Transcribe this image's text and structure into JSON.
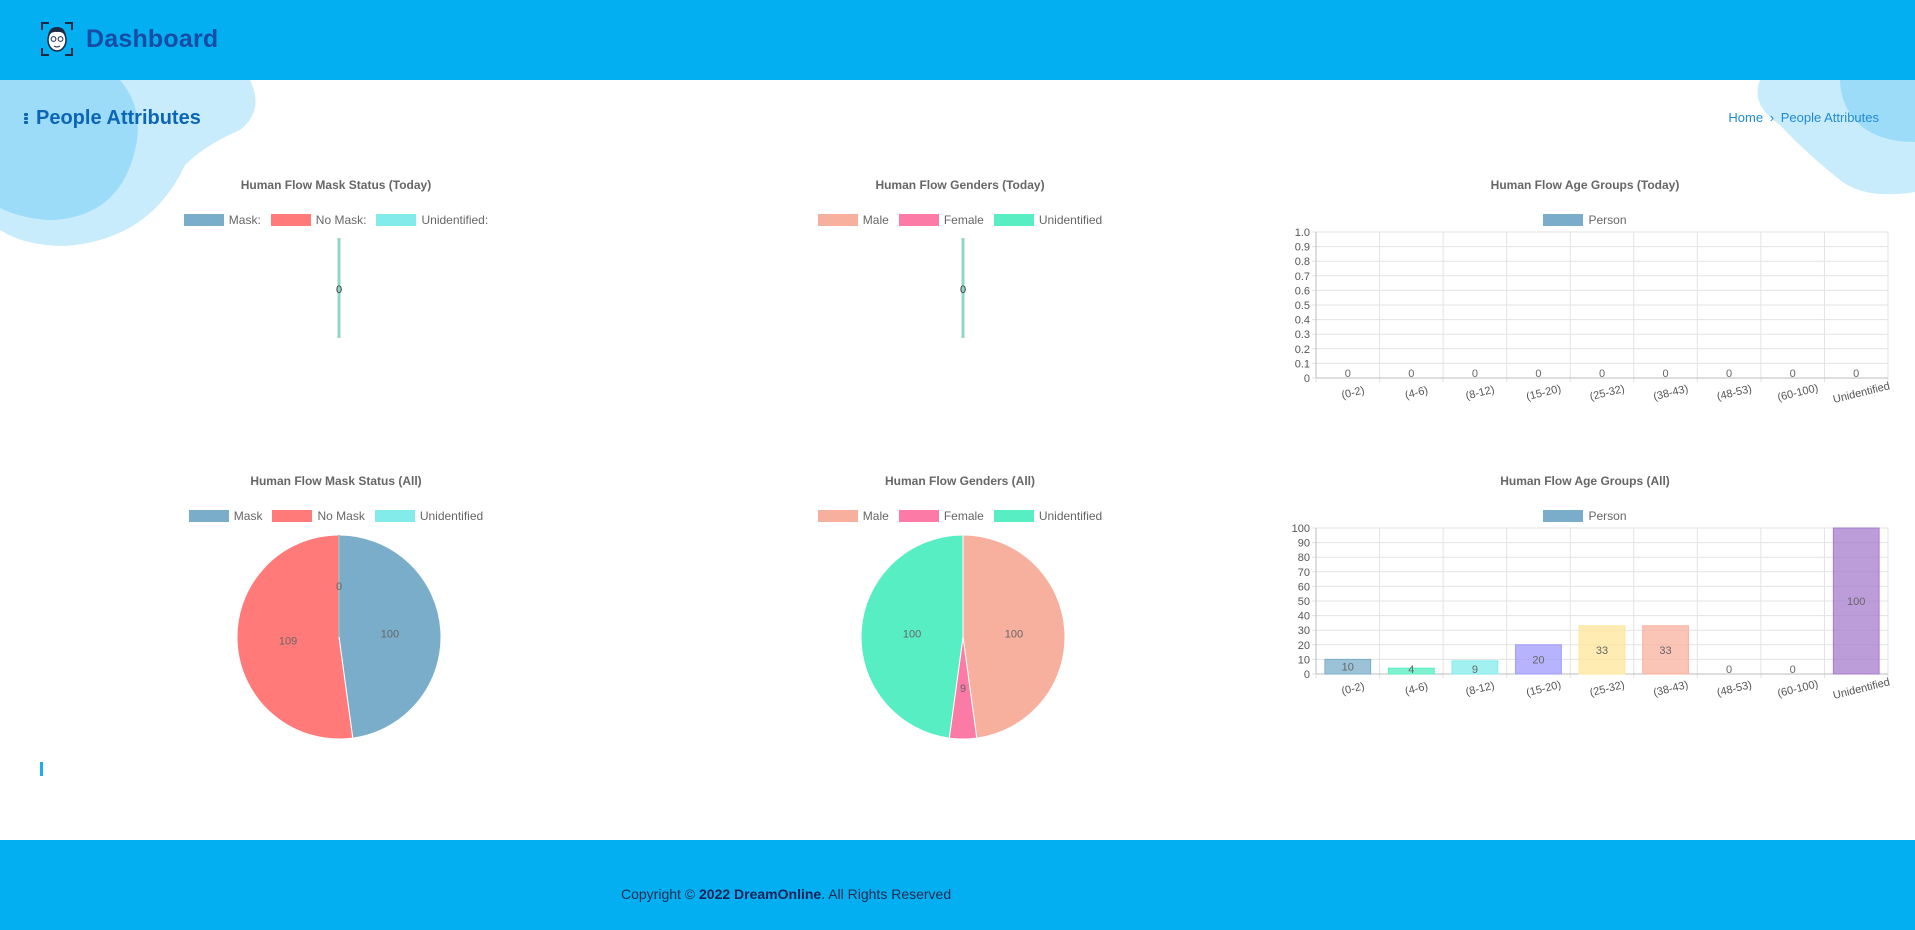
{
  "header": {
    "title": "Dashboard",
    "logo_icon": "face-scan-icon"
  },
  "page": {
    "title": "People Attributes",
    "breadcrumb": {
      "home": "Home",
      "separator": "›",
      "current": "People Attributes"
    }
  },
  "footer": {
    "copyright_prefix": "Copyright ©",
    "year_company": "2022 DreamOnline",
    "suffix": ". All Rights Reserved"
  },
  "colors": {
    "header_bg": "#03aff0",
    "title_blue": "#164ba6",
    "mask": "#79adc9",
    "no_mask": "#ff7a79",
    "unidentified_mask": "#83ebea",
    "male": "#f8b09e",
    "female": "#fc7ba6",
    "unidentified_gender": "#56eec2",
    "person": "#79adc9"
  },
  "chart_data": [
    {
      "id": "mask_today",
      "type": "pie",
      "title": "Human Flow Mask Status (Today)",
      "labels": [
        "Mask:",
        "No Mask:",
        "Unidentified:"
      ],
      "colors": [
        "#79adc9",
        "#ff7a79",
        "#83ebea"
      ],
      "values": [
        0,
        0,
        0
      ],
      "data_labels": [
        "0"
      ]
    },
    {
      "id": "genders_today",
      "type": "pie",
      "title": "Human Flow Genders (Today)",
      "labels": [
        "Male",
        "Female",
        "Unidentified"
      ],
      "colors": [
        "#f8b09e",
        "#fc7ba6",
        "#56eec2"
      ],
      "values": [
        0,
        0,
        0
      ],
      "data_labels": [
        "0"
      ]
    },
    {
      "id": "age_today",
      "type": "bar",
      "title": "Human Flow Age Groups (Today)",
      "series": [
        {
          "name": "Person",
          "values": [
            0,
            0,
            0,
            0,
            0,
            0,
            0,
            0,
            0
          ]
        }
      ],
      "categories": [
        "(0-2)",
        "(4-6)",
        "(8-12)",
        "(15-20)",
        "(25-32)",
        "(38-43)",
        "(48-53)",
        "(60-100)",
        "Unidentified"
      ],
      "bar_colors": [
        "#79adc9",
        "#56eec2",
        "#83ebea",
        "#9f9afc",
        "#fde598",
        "#f8b09e",
        "#79adc9",
        "#56eec2",
        "#a77ccc"
      ],
      "legend_color": "#79adc9",
      "ylim": [
        0,
        1.0
      ],
      "yticks": [
        "0",
        "0.1",
        "0.2",
        "0.3",
        "0.4",
        "0.5",
        "0.6",
        "0.7",
        "0.8",
        "0.9",
        "1.0"
      ]
    },
    {
      "id": "mask_all",
      "type": "pie",
      "title": "Human Flow Mask Status (All)",
      "labels": [
        "Mask",
        "No Mask",
        "Unidentified"
      ],
      "colors": [
        "#79adc9",
        "#ff7a79",
        "#83ebea"
      ],
      "values": [
        100,
        109,
        0
      ],
      "data_labels": [
        "100",
        "109",
        "0"
      ]
    },
    {
      "id": "genders_all",
      "type": "pie",
      "title": "Human Flow Genders (All)",
      "labels": [
        "Male",
        "Female",
        "Unidentified"
      ],
      "colors": [
        "#f8b09e",
        "#fc7ba6",
        "#56eec2"
      ],
      "values": [
        100,
        9,
        100
      ],
      "data_labels": [
        "100",
        "9",
        "100"
      ]
    },
    {
      "id": "age_all",
      "type": "bar",
      "title": "Human Flow Age Groups (All)",
      "series": [
        {
          "name": "Person",
          "values": [
            10,
            4,
            9,
            20,
            33,
            33,
            0,
            0,
            100
          ]
        }
      ],
      "categories": [
        "(0-2)",
        "(4-6)",
        "(8-12)",
        "(15-20)",
        "(25-32)",
        "(38-43)",
        "(48-53)",
        "(60-100)",
        "Unidentified"
      ],
      "bar_colors": [
        "#79adc9",
        "#56eec2",
        "#83ebea",
        "#9f9afc",
        "#fde598",
        "#f8b09e",
        "#79adc9",
        "#56eec2",
        "#a77ccc"
      ],
      "legend_color": "#79adc9",
      "ylim": [
        0,
        100
      ],
      "yticks": [
        "0",
        "10",
        "20",
        "30",
        "40",
        "50",
        "60",
        "70",
        "80",
        "90",
        "100"
      ]
    }
  ]
}
